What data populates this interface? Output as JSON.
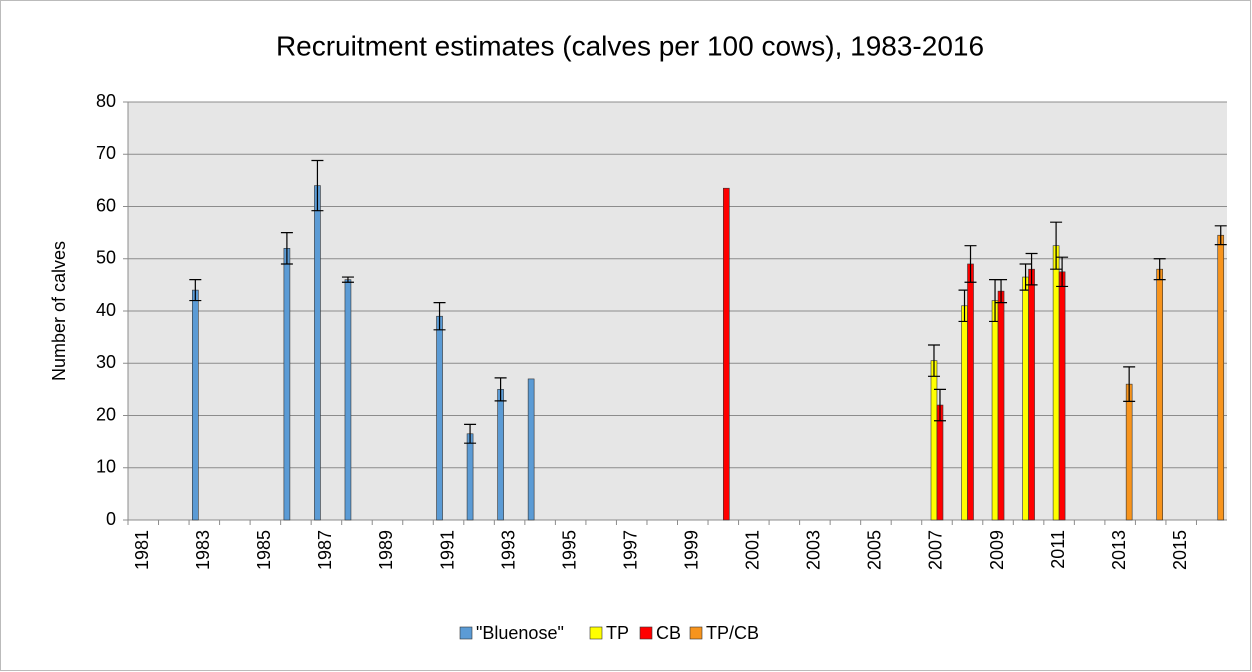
{
  "chart_data": {
    "type": "bar",
    "title": "Recruitment estimates (calves per 100 cows), 1983-2016",
    "y_label": "Number of calves",
    "categories": [
      "1981",
      null,
      "1983",
      null,
      "1985",
      null,
      "1987",
      null,
      "1989",
      null,
      "1991",
      null,
      "1993",
      null,
      "1995",
      null,
      "1997",
      null,
      "1999",
      null,
      "2001",
      null,
      "2003",
      null,
      "2005",
      null,
      "2007",
      null,
      "2009",
      null,
      "2011",
      null,
      "2013",
      null,
      "2015",
      null
    ],
    "series": [
      {
        "name": "\"Bluenose\"",
        "color": "#5b9bd5",
        "values": [
          null,
          null,
          44,
          null,
          null,
          52,
          64,
          46,
          null,
          null,
          39,
          16.5,
          25,
          27,
          null,
          null,
          null,
          null,
          null,
          null,
          null,
          null,
          null,
          null,
          null,
          null,
          null,
          null,
          null,
          null,
          null,
          null,
          null,
          null,
          null,
          null
        ],
        "errors": [
          null,
          null,
          2,
          null,
          null,
          3,
          4.8,
          0.5,
          null,
          null,
          2.6,
          1.8,
          2.2,
          null,
          null,
          null,
          null,
          null,
          null,
          null,
          null,
          null,
          null,
          null,
          null,
          null,
          null,
          null,
          null,
          null,
          null,
          null,
          null,
          null,
          null,
          null
        ]
      },
      {
        "name": "TP",
        "color": "#ffff00",
        "values": [
          null,
          null,
          null,
          null,
          null,
          null,
          null,
          null,
          null,
          null,
          null,
          null,
          null,
          null,
          null,
          null,
          null,
          null,
          null,
          null,
          null,
          null,
          null,
          null,
          null,
          null,
          30.5,
          41,
          42,
          46.5,
          52.5,
          null,
          null,
          null,
          null,
          null
        ],
        "errors": [
          null,
          null,
          null,
          null,
          null,
          null,
          null,
          null,
          null,
          null,
          null,
          null,
          null,
          null,
          null,
          null,
          null,
          null,
          null,
          null,
          null,
          null,
          null,
          null,
          null,
          null,
          3,
          3,
          4,
          2.5,
          4.5,
          null,
          null,
          null,
          null,
          null
        ]
      },
      {
        "name": "CB",
        "color": "#ff0000",
        "values": [
          null,
          null,
          null,
          null,
          null,
          null,
          null,
          null,
          null,
          null,
          null,
          null,
          null,
          null,
          null,
          null,
          null,
          null,
          null,
          63.5,
          null,
          null,
          null,
          null,
          null,
          null,
          22,
          49,
          43.8,
          48,
          47.5,
          null,
          null,
          null,
          null,
          null
        ],
        "errors": [
          null,
          null,
          null,
          null,
          null,
          null,
          null,
          null,
          null,
          null,
          null,
          null,
          null,
          null,
          null,
          null,
          null,
          null,
          null,
          null,
          null,
          null,
          null,
          null,
          null,
          null,
          3,
          3.5,
          2.2,
          3,
          2.8,
          null,
          null,
          null,
          null,
          null
        ]
      },
      {
        "name": "TP/CB",
        "color": "#f7941d",
        "values": [
          null,
          null,
          null,
          null,
          null,
          null,
          null,
          null,
          null,
          null,
          null,
          null,
          null,
          null,
          null,
          null,
          null,
          null,
          null,
          null,
          null,
          null,
          null,
          null,
          null,
          null,
          null,
          null,
          null,
          null,
          null,
          null,
          26,
          48,
          null,
          54.5
        ],
        "errors": [
          null,
          null,
          null,
          null,
          null,
          null,
          null,
          null,
          null,
          null,
          null,
          null,
          null,
          null,
          null,
          null,
          null,
          null,
          null,
          null,
          null,
          null,
          null,
          null,
          null,
          null,
          null,
          null,
          null,
          null,
          null,
          null,
          3.3,
          2,
          null,
          1.8
        ]
      }
    ],
    "ylim": [
      0,
      80
    ],
    "yticks": [
      0,
      10,
      20,
      30,
      40,
      50,
      60,
      70,
      80
    ],
    "grid": true,
    "legend": "bottom"
  }
}
